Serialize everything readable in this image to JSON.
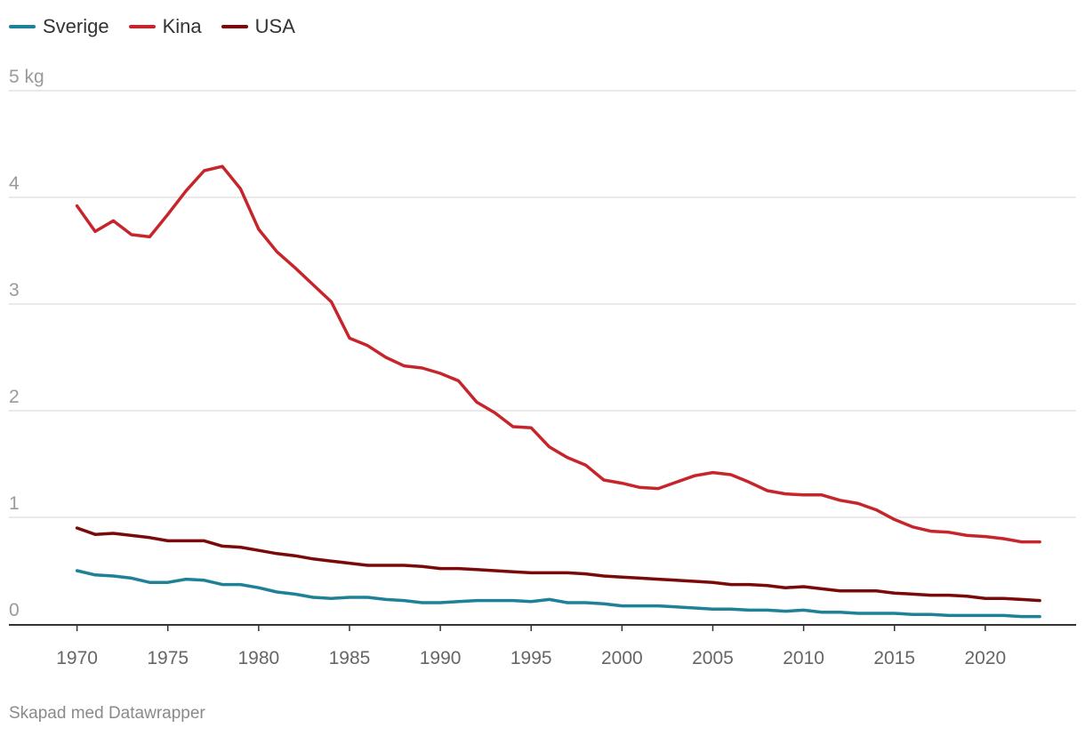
{
  "legend": [
    {
      "name": "Sverige",
      "color": "#1e8198"
    },
    {
      "name": "Kina",
      "color": "#c7252c"
    },
    {
      "name": "USA",
      "color": "#7a0a0a"
    }
  ],
  "footer": "Skapad med Datawrapper",
  "chart_data": {
    "type": "line",
    "title": "",
    "xlabel": "",
    "ylabel": "kg",
    "x": [
      1970,
      1971,
      1972,
      1973,
      1974,
      1975,
      1976,
      1977,
      1978,
      1979,
      1980,
      1981,
      1982,
      1983,
      1984,
      1985,
      1986,
      1987,
      1988,
      1989,
      1990,
      1991,
      1992,
      1993,
      1994,
      1995,
      1996,
      1997,
      1998,
      1999,
      2000,
      2001,
      2002,
      2003,
      2004,
      2005,
      2006,
      2007,
      2008,
      2009,
      2010,
      2011,
      2012,
      2013,
      2014,
      2015,
      2016,
      2017,
      2018,
      2019,
      2020,
      2021,
      2022,
      2023
    ],
    "xlim": [
      1966.25,
      2025
    ],
    "xticks": [
      1970,
      1975,
      1980,
      1985,
      1990,
      1995,
      2000,
      2005,
      2010,
      2015,
      2020
    ],
    "ylim": [
      0,
      5
    ],
    "yticks": [
      {
        "value": 0,
        "label": "0"
      },
      {
        "value": 1,
        "label": "1"
      },
      {
        "value": 2,
        "label": "2"
      },
      {
        "value": 3,
        "label": "3"
      },
      {
        "value": 4,
        "label": "4"
      },
      {
        "value": 5,
        "label": "5 kg"
      }
    ],
    "series": [
      {
        "name": "Kina",
        "color": "#c7252c",
        "values": [
          3.92,
          3.68,
          3.78,
          3.65,
          3.63,
          3.84,
          4.06,
          4.25,
          4.29,
          4.08,
          3.7,
          3.49,
          3.34,
          3.18,
          3.02,
          2.68,
          2.61,
          2.5,
          2.42,
          2.4,
          2.35,
          2.28,
          2.08,
          1.98,
          1.85,
          1.84,
          1.66,
          1.56,
          1.49,
          1.35,
          1.32,
          1.28,
          1.27,
          1.33,
          1.39,
          1.42,
          1.4,
          1.33,
          1.25,
          1.22,
          1.21,
          1.21,
          1.16,
          1.13,
          1.07,
          0.98,
          0.91,
          0.87,
          0.86,
          0.83,
          0.82,
          0.8,
          0.77,
          0.77
        ]
      },
      {
        "name": "USA",
        "color": "#7a0a0a",
        "values": [
          0.9,
          0.84,
          0.85,
          0.83,
          0.81,
          0.78,
          0.78,
          0.78,
          0.73,
          0.72,
          0.69,
          0.66,
          0.64,
          0.61,
          0.59,
          0.57,
          0.55,
          0.55,
          0.55,
          0.54,
          0.52,
          0.52,
          0.51,
          0.5,
          0.49,
          0.48,
          0.48,
          0.48,
          0.47,
          0.45,
          0.44,
          0.43,
          0.42,
          0.41,
          0.4,
          0.39,
          0.37,
          0.37,
          0.36,
          0.34,
          0.35,
          0.33,
          0.31,
          0.31,
          0.31,
          0.29,
          0.28,
          0.27,
          0.27,
          0.26,
          0.24,
          0.24,
          0.23,
          0.22
        ]
      },
      {
        "name": "Sverige",
        "color": "#1e8198",
        "values": [
          0.5,
          0.46,
          0.45,
          0.43,
          0.39,
          0.39,
          0.42,
          0.41,
          0.37,
          0.37,
          0.34,
          0.3,
          0.28,
          0.25,
          0.24,
          0.25,
          0.25,
          0.23,
          0.22,
          0.2,
          0.2,
          0.21,
          0.22,
          0.22,
          0.22,
          0.21,
          0.23,
          0.2,
          0.2,
          0.19,
          0.17,
          0.17,
          0.17,
          0.16,
          0.15,
          0.14,
          0.14,
          0.13,
          0.13,
          0.12,
          0.13,
          0.11,
          0.11,
          0.1,
          0.1,
          0.1,
          0.09,
          0.09,
          0.08,
          0.08,
          0.08,
          0.08,
          0.07,
          0.07
        ]
      }
    ]
  }
}
